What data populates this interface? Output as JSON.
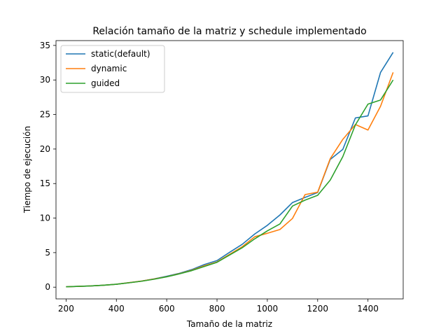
{
  "chart_data": {
    "type": "line",
    "title": "Relación tamaño de la matriz y schedule implementado",
    "xlabel": "Tamaño de la matriz",
    "ylabel": "Tiempo de ejecución",
    "xlim": [
      160,
      1540
    ],
    "ylim": [
      -1.7,
      35.7
    ],
    "xticks": [
      200,
      400,
      600,
      800,
      1000,
      1200,
      1400
    ],
    "yticks": [
      0,
      5,
      10,
      15,
      20,
      25,
      30,
      35
    ],
    "grid": false,
    "legend": "top-left",
    "x": [
      200,
      250,
      300,
      350,
      400,
      450,
      500,
      550,
      600,
      650,
      700,
      750,
      800,
      850,
      900,
      950,
      1000,
      1050,
      1100,
      1150,
      1200,
      1250,
      1300,
      1350,
      1400,
      1450,
      1500
    ],
    "series": [
      {
        "name": "static(default)",
        "color": "#1f77b4",
        "values": [
          0.05,
          0.12,
          0.18,
          0.28,
          0.42,
          0.65,
          0.88,
          1.2,
          1.58,
          2.0,
          2.55,
          3.28,
          3.85,
          5.05,
          6.2,
          7.7,
          8.95,
          10.45,
          12.25,
          13.0,
          13.7,
          18.5,
          19.95,
          24.5,
          24.8,
          31.1,
          34.0
        ]
      },
      {
        "name": "dynamic",
        "color": "#ff7f0e",
        "values": [
          0.05,
          0.12,
          0.18,
          0.28,
          0.42,
          0.65,
          0.88,
          1.18,
          1.52,
          1.95,
          2.45,
          3.1,
          3.65,
          4.75,
          5.85,
          7.3,
          7.8,
          8.35,
          9.95,
          13.4,
          13.75,
          18.6,
          21.4,
          23.55,
          22.75,
          26.2,
          31.1
        ]
      },
      {
        "name": "guided",
        "color": "#2ca02c",
        "values": [
          0.05,
          0.12,
          0.18,
          0.28,
          0.42,
          0.63,
          0.86,
          1.15,
          1.5,
          1.92,
          2.4,
          3.0,
          3.6,
          4.65,
          5.7,
          7.0,
          8.15,
          9.15,
          11.75,
          12.6,
          13.3,
          15.5,
          18.9,
          23.5,
          26.5,
          27.1,
          30.0
        ]
      }
    ]
  }
}
